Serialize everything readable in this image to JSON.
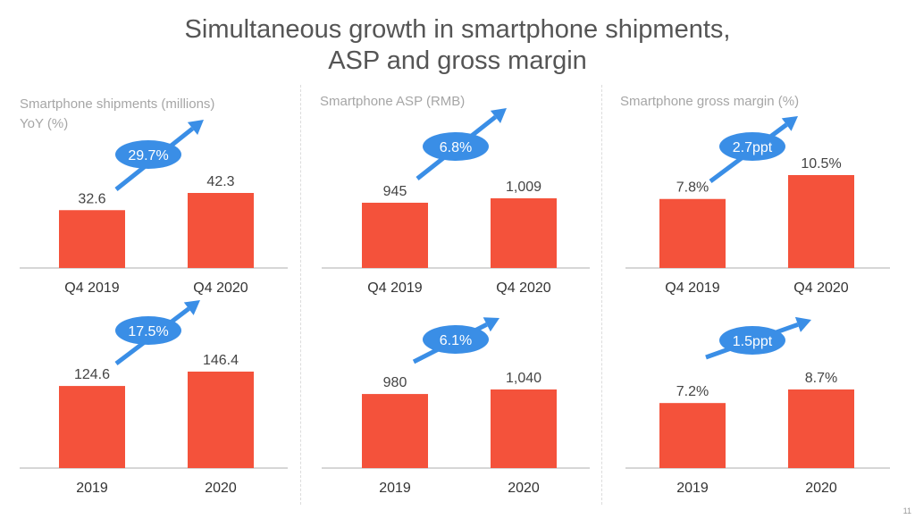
{
  "title": {
    "line1": "Simultaneous growth in smartphone shipments,",
    "line2": "ASP and gross margin"
  },
  "panels": [
    {
      "label_line1": "Smartphone shipments (millions)",
      "label_line2": "YoY (%)"
    },
    {
      "label_line1": "Smartphone ASP (RMB)",
      "label_line2": ""
    },
    {
      "label_line1": "Smartphone gross margin (%)",
      "label_line2": ""
    }
  ],
  "colors": {
    "bar": "#f4523b",
    "arrow": "#3a8ee6",
    "axis": "#c8c8c8",
    "text": "#444444"
  },
  "chart_data": [
    {
      "type": "bar",
      "panel": "shipments",
      "period": "quarterly",
      "categories": [
        "Q4 2019",
        "Q4 2020"
      ],
      "values": [
        32.6,
        42.3
      ],
      "data_labels": [
        "32.6",
        "42.3"
      ],
      "growth_label": "29.7%"
    },
    {
      "type": "bar",
      "panel": "shipments",
      "period": "annual",
      "categories": [
        "2019",
        "2020"
      ],
      "values": [
        124.6,
        146.4
      ],
      "data_labels": [
        "124.6",
        "146.4"
      ],
      "growth_label": "17.5%"
    },
    {
      "type": "bar",
      "panel": "asp",
      "period": "quarterly",
      "categories": [
        "Q4 2019",
        "Q4 2020"
      ],
      "values": [
        945,
        1009
      ],
      "data_labels": [
        "945",
        "1,009"
      ],
      "growth_label": "6.8%"
    },
    {
      "type": "bar",
      "panel": "asp",
      "period": "annual",
      "categories": [
        "2019",
        "2020"
      ],
      "values": [
        980,
        1040
      ],
      "data_labels": [
        "980",
        "1,040"
      ],
      "growth_label": "6.1%"
    },
    {
      "type": "bar",
      "panel": "gross_margin",
      "period": "quarterly",
      "categories": [
        "Q4 2019",
        "Q4 2020"
      ],
      "values": [
        7.8,
        10.5
      ],
      "data_labels": [
        "7.8%",
        "10.5%"
      ],
      "growth_label": "2.7ppt"
    },
    {
      "type": "bar",
      "panel": "gross_margin",
      "period": "annual",
      "categories": [
        "2019",
        "2020"
      ],
      "values": [
        7.2,
        8.7
      ],
      "data_labels": [
        "7.2%",
        "8.7%"
      ],
      "growth_label": "1.5ppt"
    }
  ],
  "page_number": "11"
}
